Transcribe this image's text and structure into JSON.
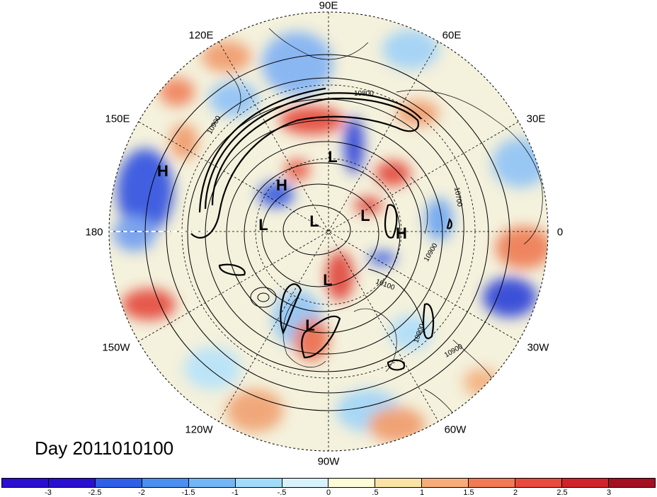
{
  "title": "Day 2011010100",
  "lon_labels": [
    {
      "text": "90E",
      "angle": 0
    },
    {
      "text": "60E",
      "angle": 30
    },
    {
      "text": "30E",
      "angle": 60
    },
    {
      "text": "0",
      "angle": 90
    },
    {
      "text": "30W",
      "angle": 120
    },
    {
      "text": "60W",
      "angle": 150
    },
    {
      "text": "90W",
      "angle": 180
    },
    {
      "text": "120W",
      "angle": 210
    },
    {
      "text": "150W",
      "angle": 240
    },
    {
      "text": "180",
      "angle": 270
    },
    {
      "text": "150E",
      "angle": 300
    },
    {
      "text": "120E",
      "angle": 330
    }
  ],
  "pressure_centers": [
    {
      "text": "H",
      "kind": "high"
    },
    {
      "text": "H",
      "kind": "high"
    },
    {
      "text": "H",
      "kind": "high"
    },
    {
      "text": "L",
      "kind": "low"
    },
    {
      "text": "L",
      "kind": "low"
    },
    {
      "text": "L",
      "kind": "low"
    },
    {
      "text": "L",
      "kind": "low"
    },
    {
      "text": "L",
      "kind": "low"
    },
    {
      "text": "L",
      "kind": "low"
    }
  ],
  "contour_labels": [
    "10800",
    "10900",
    "10700",
    "10900",
    "10100",
    "10900",
    "10900"
  ],
  "colorbar": {
    "ticks": [
      "-3",
      "-2.5",
      "-2",
      "-1.5",
      "-1",
      "-.5",
      "0",
      ".5",
      "1",
      "1.5",
      "2",
      "2.5",
      "3"
    ],
    "colors": [
      "#2a0fd0",
      "#2f5fe6",
      "#4b8ff0",
      "#73b6f6",
      "#a0dcfa",
      "#d7f2fb",
      "#fdfbd8",
      "#fbe3a8",
      "#f6ad7a",
      "#f07a55",
      "#e84a3d",
      "#d0232b",
      "#a50f22"
    ]
  },
  "colors": {
    "fill_neutral": "#fdfbe6",
    "coast": "#000000"
  }
}
